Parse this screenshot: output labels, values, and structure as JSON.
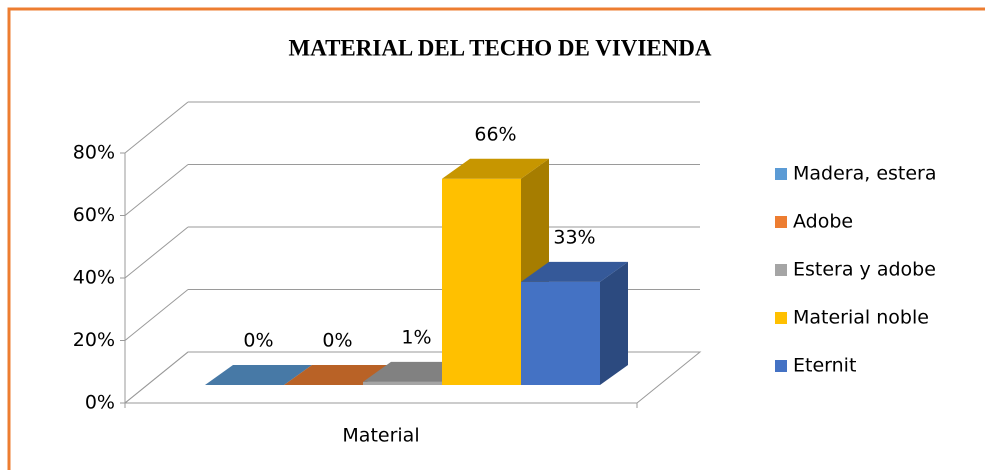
{
  "chart_data": {
    "type": "bar3d",
    "title": "MATERIAL DEL TECHO DE VIVIENDA",
    "categories": [
      "Material"
    ],
    "series": [
      {
        "name": "Madera, estera",
        "color": "#5b9bd5",
        "values": [
          0
        ],
        "value_labels": [
          "0%"
        ]
      },
      {
        "name": "Adobe",
        "color": "#ed7d31",
        "values": [
          0
        ],
        "value_labels": [
          "0%"
        ]
      },
      {
        "name": "Estera y adobe",
        "color": "#a5a5a5",
        "values": [
          1
        ],
        "value_labels": [
          "1%"
        ]
      },
      {
        "name": "Material noble",
        "color": "#ffc000",
        "values": [
          66
        ],
        "value_labels": [
          "66%"
        ]
      },
      {
        "name": "Eternit",
        "color": "#4472c4",
        "values": [
          33
        ],
        "value_labels": [
          "33%"
        ]
      }
    ],
    "ylim": [
      0,
      80
    ],
    "yticks": [
      {
        "value": 0,
        "label": "0%"
      },
      {
        "value": 20,
        "label": "20%"
      },
      {
        "value": 40,
        "label": "40%"
      },
      {
        "value": 60,
        "label": "60%"
      },
      {
        "value": 80,
        "label": "80%"
      }
    ],
    "grid": true,
    "legend": "right"
  }
}
